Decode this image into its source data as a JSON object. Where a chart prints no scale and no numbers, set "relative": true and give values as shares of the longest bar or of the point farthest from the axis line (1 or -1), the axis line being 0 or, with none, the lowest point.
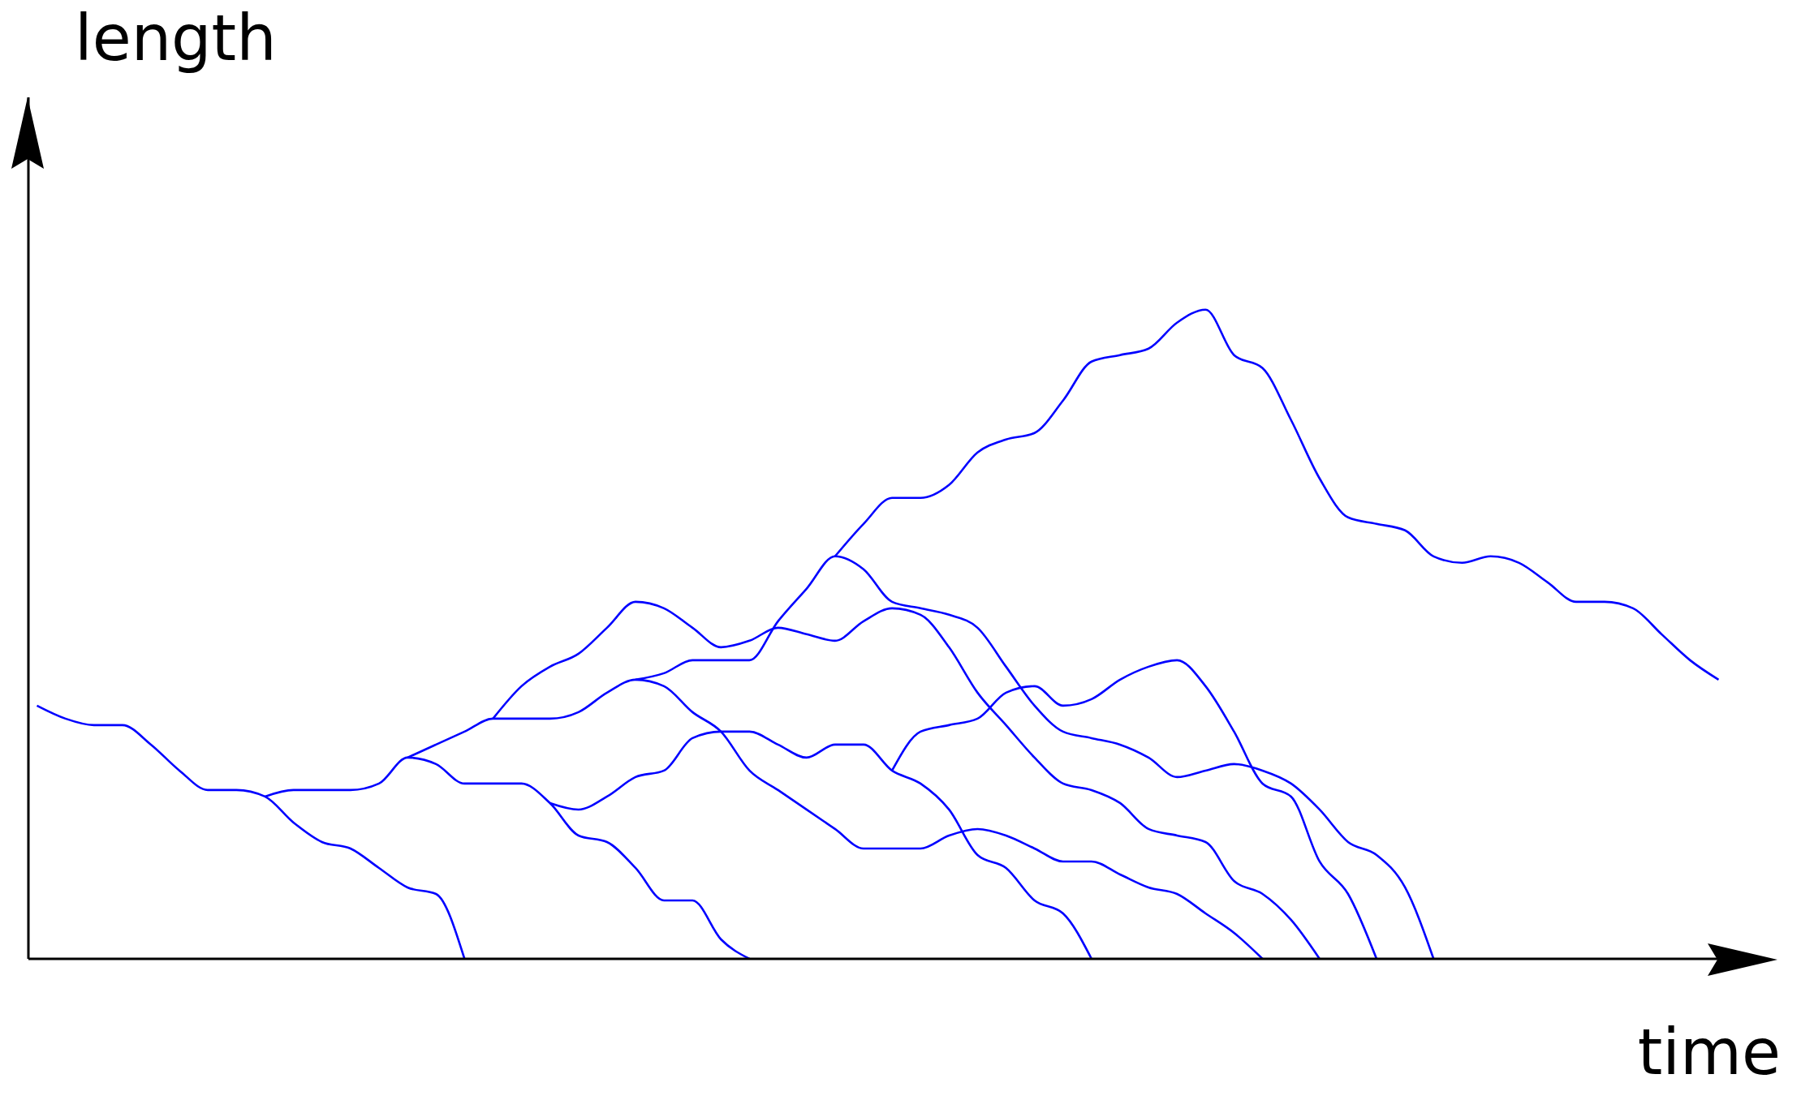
{
  "chart_data": {
    "type": "line",
    "relative": true,
    "xlabel": "time",
    "ylabel": "length",
    "categories": [
      null,
      null,
      null,
      null,
      null,
      null,
      null,
      null,
      null,
      null,
      null,
      null,
      null,
      null,
      null,
      null,
      null,
      null,
      null,
      null,
      null,
      null,
      null,
      null,
      null,
      null,
      null,
      null,
      null,
      null,
      null,
      null,
      null,
      null,
      null,
      null,
      null,
      null,
      null,
      null,
      null,
      null,
      null,
      null,
      null,
      null,
      null,
      null,
      null,
      null,
      null,
      null,
      null,
      null,
      null,
      null,
      null,
      null,
      null,
      null
    ],
    "series": [
      {
        "color": "#0000ff",
        "values": [
          0.39,
          0.37,
          0.36,
          0.36,
          0.33,
          0.29,
          0.26,
          0.26,
          0.25,
          0.21,
          0.18,
          0.17,
          0.14,
          0.11,
          0.1,
          0,
          null,
          null,
          null,
          null,
          null,
          null,
          null,
          null,
          null,
          null,
          null,
          null,
          null,
          null,
          null,
          null,
          null,
          null,
          null,
          null,
          null,
          null,
          null,
          null,
          null,
          null,
          null,
          null,
          null,
          null,
          null,
          null,
          null,
          null,
          null,
          null,
          null,
          null,
          null,
          null,
          null,
          null,
          null,
          null
        ]
      },
      {
        "color": "#0000ff",
        "values": [
          null,
          null,
          null,
          null,
          null,
          null,
          null,
          null,
          0.25,
          0.26,
          0.26,
          0.26,
          0.27,
          0.31,
          0.3,
          0.27,
          0.27,
          0.27,
          0.24,
          0.19,
          0.18,
          0.14,
          0.09,
          0.09,
          0.03,
          0,
          null,
          null,
          null,
          null,
          null,
          null,
          null,
          null,
          null,
          null,
          null,
          null,
          null,
          null,
          null,
          null,
          null,
          null,
          null,
          null,
          null,
          null,
          null,
          null,
          null,
          null,
          null,
          null,
          null,
          null,
          null,
          null,
          null,
          null
        ]
      },
      {
        "color": "#0000ff",
        "values": [
          null,
          null,
          null,
          null,
          null,
          null,
          null,
          null,
          null,
          null,
          null,
          null,
          null,
          0.31,
          0.33,
          0.35,
          0.37,
          0.37,
          0.37,
          0.38,
          0.41,
          0.43,
          0.42,
          0.38,
          0.35,
          0.29,
          0.26,
          0.23,
          0.2,
          0.17,
          0.17,
          0.17,
          0.19,
          0.2,
          0.19,
          0.17,
          0.15,
          0.15,
          0.13,
          0.11,
          0.1,
          0.07,
          0.04,
          0,
          null,
          null,
          null,
          null,
          null,
          null,
          null,
          null,
          null,
          null,
          null,
          null,
          null,
          null,
          null,
          null
        ]
      },
      {
        "color": "#0000ff",
        "values": [
          null,
          null,
          null,
          null,
          null,
          null,
          null,
          null,
          null,
          null,
          null,
          null,
          null,
          null,
          null,
          null,
          null,
          null,
          0.24,
          0.23,
          0.25,
          0.28,
          0.29,
          0.34,
          0.35,
          0.35,
          0.33,
          0.31,
          0.33,
          0.33,
          0.29,
          0.27,
          0.23,
          0.16,
          0.14,
          0.09,
          0.07,
          0,
          null,
          null,
          null,
          null,
          null,
          null,
          null,
          null,
          null,
          null,
          null,
          null,
          null,
          null,
          null,
          null,
          null,
          null,
          null,
          null,
          null,
          null
        ]
      },
      {
        "color": "#0000ff",
        "values": [
          null,
          null,
          null,
          null,
          null,
          null,
          null,
          null,
          null,
          null,
          null,
          null,
          null,
          null,
          null,
          null,
          null,
          null,
          null,
          null,
          null,
          null,
          null,
          null,
          null,
          null,
          null,
          null,
          null,
          null,
          0.29,
          0.35,
          0.36,
          0.37,
          0.41,
          0.42,
          0.39,
          0.4,
          0.43,
          0.45,
          0.46,
          0.42,
          0.35,
          0.27,
          0.25,
          0.15,
          0.1,
          0,
          null,
          null,
          null,
          null,
          null,
          null,
          null,
          null,
          null,
          null,
          null,
          null
        ]
      },
      {
        "color": "#0000ff",
        "values": [
          null,
          null,
          null,
          null,
          null,
          null,
          null,
          null,
          null,
          null,
          null,
          null,
          null,
          null,
          null,
          null,
          null,
          null,
          null,
          null,
          null,
          0.43,
          0.44,
          0.46,
          0.46,
          0.46,
          0.52,
          0.57,
          0.62,
          0.6,
          0.55,
          0.54,
          0.53,
          0.51,
          0.45,
          0.39,
          0.35,
          0.34,
          0.33,
          0.31,
          0.28,
          0.29,
          0.3,
          0.29,
          0.27,
          0.23,
          0.18,
          0.16,
          0.11,
          0,
          null,
          null,
          null,
          null,
          null,
          null,
          null,
          null,
          null,
          null
        ]
      },
      {
        "color": "#0000ff",
        "values": [
          null,
          null,
          null,
          null,
          null,
          null,
          null,
          null,
          null,
          null,
          null,
          null,
          null,
          null,
          null,
          null,
          null,
          null,
          null,
          null,
          null,
          null,
          null,
          null,
          null,
          null,
          null,
          null,
          0.62,
          0.67,
          0.71,
          0.71,
          0.73,
          0.78,
          0.8,
          0.81,
          0.86,
          0.92,
          0.93,
          0.94,
          0.98,
          1,
          0.93,
          0.91,
          0.83,
          0.74,
          0.68,
          0.67,
          0.66,
          0.62,
          0.61,
          0.62,
          0.61,
          0.58,
          0.55,
          0.55,
          0.54,
          0.5,
          0.46,
          0.43
        ]
      },
      {
        "color": "#0000ff",
        "values": [
          null,
          null,
          null,
          null,
          null,
          null,
          null,
          null,
          null,
          null,
          null,
          null,
          null,
          null,
          null,
          null,
          0.37,
          0.42,
          0.45,
          0.47,
          0.51,
          0.55,
          0.54,
          0.51,
          0.48,
          0.49,
          0.51,
          0.5,
          0.49,
          0.52,
          0.54,
          0.53,
          0.48,
          0.41,
          0.36,
          0.31,
          0.27,
          0.26,
          0.24,
          0.2,
          0.19,
          0.18,
          0.12,
          0.1,
          0.06,
          0,
          null,
          null,
          null,
          null,
          null,
          null,
          null,
          null,
          null,
          null,
          null,
          null,
          null,
          null
        ]
      }
    ]
  }
}
